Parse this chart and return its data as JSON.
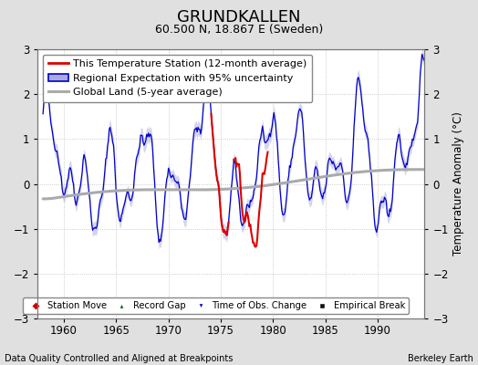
{
  "title": "GRUNDKALLEN",
  "subtitle": "60.500 N, 18.867 E (Sweden)",
  "ylabel": "Temperature Anomaly (°C)",
  "xlabel_bottom_left": "Data Quality Controlled and Aligned at Breakpoints",
  "xlabel_bottom_right": "Berkeley Earth",
  "ylim": [
    -3,
    3
  ],
  "xlim": [
    1957.5,
    1994.5
  ],
  "yticks": [
    -3,
    -2,
    -1,
    0,
    1,
    2,
    3
  ],
  "xticks": [
    1960,
    1965,
    1970,
    1975,
    1980,
    1985,
    1990
  ],
  "bg_color": "#e0e0e0",
  "plot_bg_color": "#ffffff",
  "grid_color": "#bbbbbb",
  "red_line_color": "#dd0000",
  "blue_line_color": "#0000cc",
  "blue_fill_color": "#aaaadd",
  "gray_line_color": "#aaaaaa",
  "title_fontsize": 13,
  "subtitle_fontsize": 9,
  "legend_fontsize": 8,
  "axis_fontsize": 8.5,
  "seed": 42,
  "red_segment1_start": 1974.0,
  "red_segment1_end": 1975.8,
  "red_segment2_start": 1976.2,
  "red_segment2_end": 1979.5
}
